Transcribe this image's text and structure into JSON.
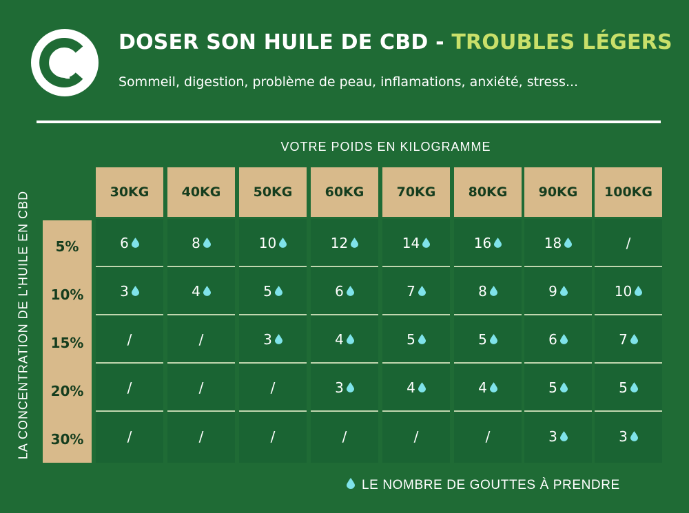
{
  "header": {
    "title_main": "DOSER SON HUILE DE CBD",
    "title_separator": " - ",
    "title_accent": "TROUBLES LÉGERS",
    "subtitle": "Sommeil, digestion, problème de peau, inflamations, anxiété, stress..."
  },
  "table": {
    "x_axis_label": "VOTRE POIDS EN KILOGRAMME",
    "y_axis_label": "LA CONCENTRATION DE L'HUILE EN CBD",
    "weights": [
      "30KG",
      "40KG",
      "50KG",
      "60KG",
      "70KG",
      "80KG",
      "90KG",
      "100KG"
    ],
    "concentrations": [
      "5%",
      "10%",
      "15%",
      "20%",
      "30%"
    ],
    "rows": [
      [
        "6",
        "8",
        "10",
        "12",
        "14",
        "16",
        "18",
        "/"
      ],
      [
        "3",
        "4",
        "5",
        "6",
        "7",
        "8",
        "9",
        "10"
      ],
      [
        "/",
        "/",
        "3",
        "4",
        "5",
        "5",
        "6",
        "7"
      ],
      [
        "/",
        "/",
        "/",
        "3",
        "4",
        "4",
        "5",
        "5"
      ],
      [
        "/",
        "/",
        "/",
        "/",
        "/",
        "/",
        "3",
        "3"
      ]
    ]
  },
  "legend": {
    "icon": "drop-icon",
    "label": "LE NOMBRE DE GOUTTES À PRENDRE"
  },
  "colors": {
    "background": "#1f6b35",
    "accent": "#c9e06a",
    "header_cell": "#d8ba8b",
    "drop": "#7fe3ea"
  }
}
